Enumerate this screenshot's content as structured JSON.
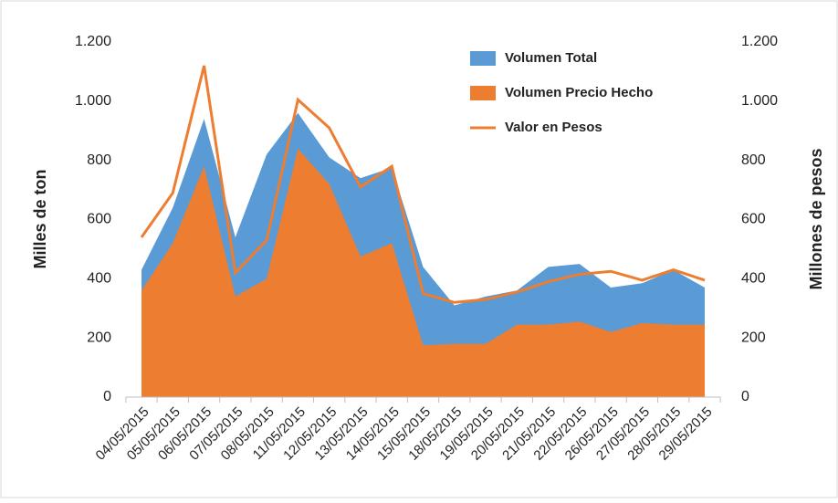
{
  "chart_data": {
    "type": "area",
    "categories": [
      "04/05/2015",
      "05/05/2015",
      "06/05/2015",
      "07/05/2015",
      "08/05/2015",
      "11/05/2015",
      "12/05/2015",
      "13/05/2015",
      "14/05/2015",
      "15/05/2015",
      "18/05/2015",
      "19/05/2015",
      "20/05/2015",
      "21/05/2015",
      "22/05/2015",
      "26/05/2015",
      "27/05/2015",
      "28/05/2015",
      "29/05/2015"
    ],
    "series": [
      {
        "name": "Volumen Total",
        "color": "#5b9bd5",
        "kind": "area",
        "values": [
          430,
          640,
          940,
          540,
          820,
          960,
          810,
          740,
          775,
          440,
          310,
          340,
          360,
          440,
          450,
          370,
          385,
          430,
          370
        ]
      },
      {
        "name": "Volumen Precio Hecho",
        "color": "#ed7d31",
        "kind": "area",
        "values": [
          360,
          520,
          780,
          340,
          400,
          840,
          720,
          475,
          520,
          175,
          180,
          180,
          245,
          245,
          255,
          220,
          250,
          245,
          245
        ]
      },
      {
        "name": "Valor en Pesos",
        "color": "#ed7d31",
        "kind": "line",
        "axis": "y2",
        "values": [
          540,
          690,
          1120,
          420,
          530,
          1005,
          910,
          710,
          780,
          350,
          320,
          330,
          355,
          390,
          415,
          425,
          395,
          430,
          395
        ]
      }
    ],
    "ylabel": "Milles de ton",
    "y2label": "Millones de pesos",
    "ylim": [
      0,
      1200
    ],
    "yticks": [
      0,
      200,
      400,
      600,
      800,
      {
        "value": 1000,
        "label": "1.000"
      },
      {
        "value": 1200,
        "label": "1.200"
      }
    ],
    "y2lim": [
      0,
      1200
    ],
    "y2ticks": [
      0,
      200,
      400,
      600,
      800,
      {
        "value": 1000,
        "label": "1.000"
      },
      {
        "value": 1200,
        "label": "1.200"
      }
    ],
    "legend": "top-right"
  }
}
